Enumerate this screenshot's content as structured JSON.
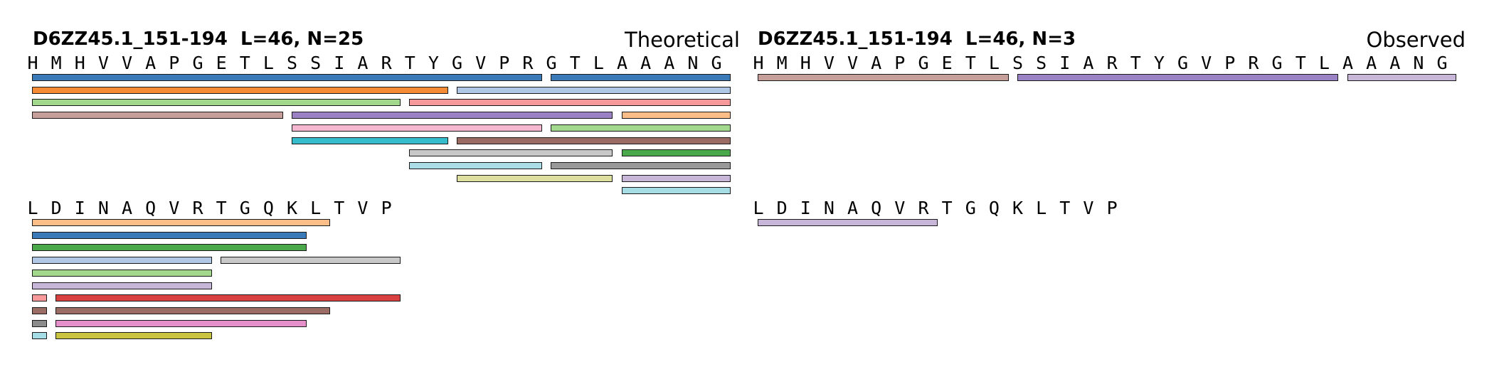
{
  "panels": [
    {
      "id": "theoretical",
      "title": "D6ZZ45.1_151-194  L=46, N=25",
      "label": "Theoretical",
      "rows": [
        {
          "sequence": "HMHVVAPGETLSSIARTYGVPRGTLAAANG",
          "peptides": [
            {
              "start": 0,
              "end": 21,
              "lane": 0,
              "color": "#3a7ab8"
            },
            {
              "start": 22,
              "end": 29,
              "lane": 0,
              "color": "#3a7ab8"
            },
            {
              "start": 0,
              "end": 17,
              "lane": 1,
              "color": "#f58b35"
            },
            {
              "start": 18,
              "end": 29,
              "lane": 1,
              "color": "#b0c8e6"
            },
            {
              "start": 0,
              "end": 15,
              "lane": 2,
              "color": "#a3d98e"
            },
            {
              "start": 16,
              "end": 29,
              "lane": 2,
              "color": "#f7999a"
            },
            {
              "start": 0,
              "end": 10,
              "lane": 3,
              "color": "#c79f9a"
            },
            {
              "start": 11,
              "end": 24,
              "lane": 3,
              "color": "#9b82c5"
            },
            {
              "start": 25,
              "end": 29,
              "lane": 3,
              "color": "#fbbe88"
            },
            {
              "start": 11,
              "end": 21,
              "lane": 4,
              "color": "#f5b7cf"
            },
            {
              "start": 22,
              "end": 29,
              "lane": 4,
              "color": "#a3d98e"
            },
            {
              "start": 11,
              "end": 17,
              "lane": 5,
              "color": "#35bccd"
            },
            {
              "start": 18,
              "end": 29,
              "lane": 5,
              "color": "#9a6c63"
            },
            {
              "start": 16,
              "end": 24,
              "lane": 6,
              "color": "#c8c8c8"
            },
            {
              "start": 25,
              "end": 29,
              "lane": 6,
              "color": "#4aa84a"
            },
            {
              "start": 16,
              "end": 21,
              "lane": 7,
              "color": "#abdde6"
            },
            {
              "start": 22,
              "end": 29,
              "lane": 7,
              "color": "#999999"
            },
            {
              "start": 18,
              "end": 24,
              "lane": 8,
              "color": "#dddf9e"
            },
            {
              "start": 25,
              "end": 29,
              "lane": 8,
              "color": "#c7b6d8"
            },
            {
              "start": 25,
              "end": 29,
              "lane": 9,
              "color": "#a6dde5"
            }
          ]
        },
        {
          "sequence": "LDINAQVRTGQKLTVP",
          "peptides": [
            {
              "start": 0,
              "end": 12,
              "lane": 0,
              "color": "#fbbe88"
            },
            {
              "start": 0,
              "end": 11,
              "lane": 1,
              "color": "#3a7ab8"
            },
            {
              "start": 0,
              "end": 11,
              "lane": 2,
              "color": "#4aa84a"
            },
            {
              "start": 0,
              "end": 7,
              "lane": 3,
              "color": "#b0c8e6"
            },
            {
              "start": 8,
              "end": 15,
              "lane": 3,
              "color": "#c8c8c8"
            },
            {
              "start": 0,
              "end": 7,
              "lane": 4,
              "color": "#a3d98e"
            },
            {
              "start": 0,
              "end": 7,
              "lane": 5,
              "color": "#c7b6d8"
            },
            {
              "start": 0,
              "end": 0,
              "lane": 6,
              "color": "#f7999a"
            },
            {
              "start": 1,
              "end": 15,
              "lane": 6,
              "color": "#d94040"
            },
            {
              "start": 0,
              "end": 0,
              "lane": 7,
              "color": "#9a6c63"
            },
            {
              "start": 1,
              "end": 12,
              "lane": 7,
              "color": "#9a6c63"
            },
            {
              "start": 0,
              "end": 0,
              "lane": 8,
              "color": "#8c8c8c"
            },
            {
              "start": 1,
              "end": 11,
              "lane": 8,
              "color": "#e58fcb"
            },
            {
              "start": 0,
              "end": 0,
              "lane": 9,
              "color": "#a6dde5"
            },
            {
              "start": 1,
              "end": 7,
              "lane": 9,
              "color": "#c9c43e"
            }
          ]
        }
      ]
    },
    {
      "id": "observed",
      "title": "D6ZZ45.1_151-194  L=46, N=3",
      "label": "Observed",
      "rows": [
        {
          "sequence": "HMHVVAPGETLSSIARTYGVPRGTLAAANG",
          "peptides": [
            {
              "start": 0,
              "end": 10,
              "lane": 0,
              "color": "#c79f9a"
            },
            {
              "start": 11,
              "end": 24,
              "lane": 0,
              "color": "#9b82c5"
            },
            {
              "start": 25,
              "end": 29,
              "lane": 0,
              "color": "#c7b6d8"
            }
          ]
        },
        {
          "sequence": "LDINAQVRTGQKLTVP",
          "peptides": [
            {
              "start": 0,
              "end": 7,
              "lane": 0,
              "color": "#c7b6d8"
            }
          ]
        }
      ]
    }
  ]
}
